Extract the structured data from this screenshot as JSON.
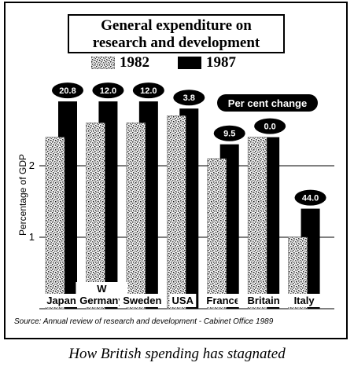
{
  "chart_data": {
    "type": "bar",
    "title": "General expenditure on research and development",
    "title_lines": [
      "General expenditure on",
      "research and development"
    ],
    "ylabel": "Percentage of GDP",
    "ylim": [
      0,
      3
    ],
    "yticks": [
      1,
      2
    ],
    "grid": true,
    "legend_position": "top-center",
    "categories": [
      "Japan",
      "W Germany",
      "Sweden",
      "USA",
      "France",
      "Britain",
      "Italy"
    ],
    "category_label_lines": [
      [
        "Japan"
      ],
      [
        "W",
        "Germany"
      ],
      [
        "Sweden"
      ],
      [
        "USA"
      ],
      [
        "France"
      ],
      [
        "Britain"
      ],
      [
        "Italy"
      ]
    ],
    "series": [
      {
        "name": "1982",
        "values": [
          2.4,
          2.6,
          2.6,
          2.7,
          2.1,
          2.4,
          1.0
        ],
        "color": "#bbbbbb",
        "pattern": "speckled"
      },
      {
        "name": "1987",
        "values": [
          2.9,
          2.9,
          2.9,
          2.8,
          2.3,
          2.4,
          1.4
        ],
        "color": "#000000"
      }
    ],
    "percent_change": [
      "20.8",
      "12.0",
      "12.0",
      "3.8",
      "9.5",
      "0.0",
      "44.0"
    ],
    "annotation": "Per cent change"
  },
  "source_note": "Source: Annual review of research and development - Cabinet Office 1989",
  "caption": "How British spending has stagnated"
}
